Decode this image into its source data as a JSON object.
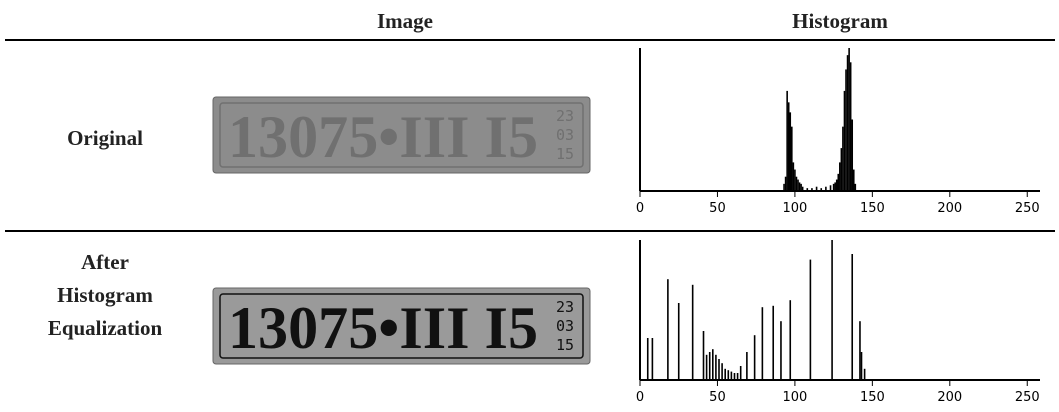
{
  "header": {
    "image": "Image",
    "histogram": "Histogram"
  },
  "rows": [
    {
      "label": [
        "Original"
      ],
      "plate": {
        "number": "13075•III I5",
        "side": [
          "23",
          "03",
          "15"
        ]
      },
      "chart_data": {
        "type": "bar",
        "color": "#000000",
        "x": [
          93,
          94,
          95,
          96,
          97,
          98,
          99,
          100,
          101,
          102,
          103,
          104,
          105,
          108,
          111,
          114,
          117,
          120,
          123,
          125,
          126,
          127,
          128,
          129,
          130,
          131,
          132,
          133,
          134,
          135,
          136,
          137,
          138,
          139
        ],
        "values": [
          5,
          10,
          70,
          62,
          55,
          45,
          20,
          15,
          10,
          8,
          6,
          5,
          3,
          2,
          2,
          3,
          2,
          3,
          4,
          5,
          6,
          8,
          12,
          20,
          30,
          45,
          70,
          85,
          95,
          100,
          90,
          50,
          15,
          5
        ],
        "xlim": [
          0,
          255
        ],
        "ylim": [
          0,
          100
        ],
        "xticks": [
          0,
          50,
          100,
          150,
          200,
          250
        ]
      }
    },
    {
      "label": [
        "After",
        "Histogram",
        "Equalization"
      ],
      "plate": {
        "number": "13075•III I5",
        "side": [
          "23",
          "03",
          "15"
        ]
      },
      "chart_data": {
        "type": "bar",
        "color": "#000000",
        "x": [
          5,
          8,
          18,
          25,
          34,
          41,
          43,
          45,
          47,
          49,
          51,
          53,
          55,
          57,
          59,
          61,
          63,
          65,
          69,
          74,
          79,
          86,
          91,
          97,
          110,
          124,
          137,
          142,
          143,
          145
        ],
        "values": [
          30,
          30,
          72,
          55,
          68,
          35,
          18,
          20,
          22,
          18,
          15,
          12,
          8,
          7,
          6,
          5,
          5,
          10,
          20,
          32,
          52,
          53,
          42,
          57,
          86,
          100,
          90,
          42,
          20,
          8
        ],
        "xlim": [
          0,
          255
        ],
        "ylim": [
          0,
          100
        ],
        "xticks": [
          0,
          50,
          100,
          150,
          200,
          250
        ]
      }
    }
  ]
}
